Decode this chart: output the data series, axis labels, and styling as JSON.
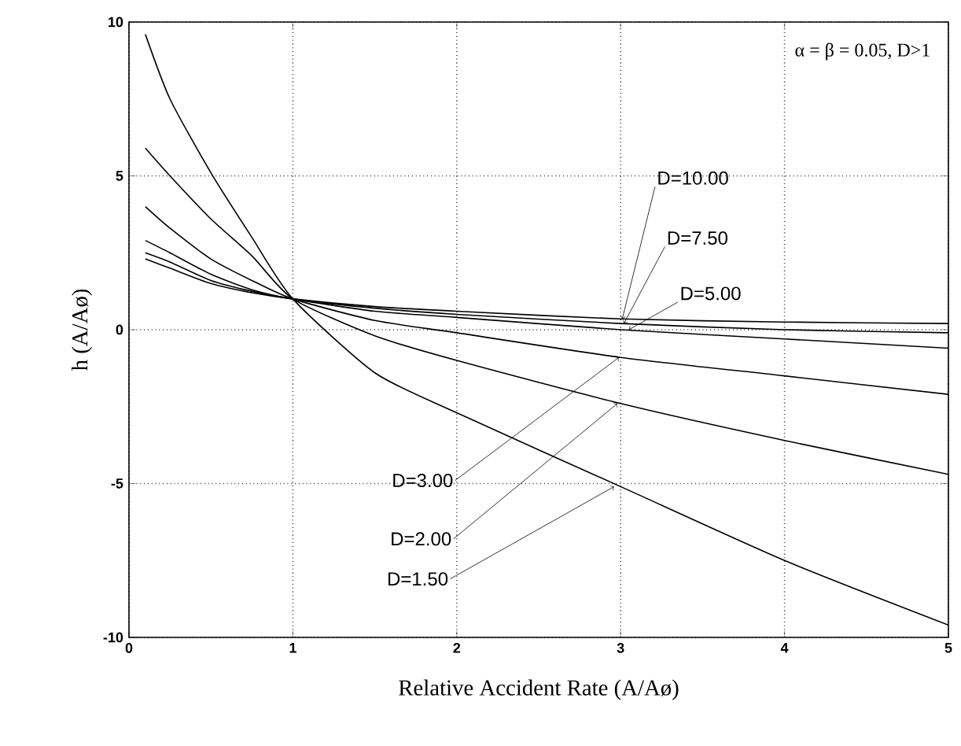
{
  "chart_data": {
    "type": "line",
    "xlabel": "Relative Accident Rate (A/Aø)",
    "ylabel": "h (A/Aø)",
    "x": [
      0.1,
      0.25,
      0.5,
      0.75,
      1,
      1.5,
      2,
      3,
      4,
      5
    ],
    "series": [
      {
        "color": "#000000",
        "values": [
          2.3,
          2.0,
          1.5,
          1.2,
          1,
          0.75,
          0.6,
          0.35,
          0.25,
          0.2
        ]
      },
      {
        "color": "#000000",
        "values": [
          2.5,
          2.2,
          1.6,
          1.25,
          1,
          0.7,
          0.5,
          0.2,
          0.0,
          -0.1
        ]
      },
      {
        "color": "#000000",
        "values": [
          2.9,
          2.5,
          1.8,
          1.3,
          1,
          0.6,
          0.4,
          0.0,
          -0.3,
          -0.6
        ]
      },
      {
        "color": "#000000",
        "values": [
          4.0,
          3.3,
          2.3,
          1.6,
          1,
          0.3,
          -0.1,
          -0.9,
          -1.5,
          -2.1
        ]
      },
      {
        "color": "#000000",
        "values": [
          5.9,
          5.0,
          3.6,
          2.4,
          1,
          -0.2,
          -1.0,
          -2.4,
          -3.6,
          -4.7
        ]
      },
      {
        "color": "#000000",
        "values": [
          9.6,
          7.5,
          5.1,
          3.0,
          1,
          -1.4,
          -2.7,
          -5.1,
          -7.5,
          -9.6
        ]
      }
    ],
    "xlim": [
      0,
      5
    ],
    "ylim": [
      -10,
      10
    ],
    "xticks": [
      0,
      1,
      2,
      3,
      4,
      5
    ],
    "yticks": [
      -10,
      -5,
      0,
      5,
      10
    ],
    "grid": true,
    "marker": "none",
    "line_style": "solid",
    "annotations": [
      "α = β = 0.05,   D>1",
      {
        "text": "D=10.00",
        "x": 3.01,
        "y": 0.35
      },
      {
        "text": "D=7.50",
        "x": 3.02,
        "y": 0.2
      },
      {
        "text": "D=5.00",
        "x": 3.05,
        "y": 0.0
      },
      {
        "text": "D=3.00",
        "x": 2.99,
        "y": -0.9
      },
      {
        "text": "D=2.00",
        "x": 2.98,
        "y": -2.4
      },
      {
        "text": "D=1.50",
        "x": 2.96,
        "y": -5.1
      }
    ]
  }
}
